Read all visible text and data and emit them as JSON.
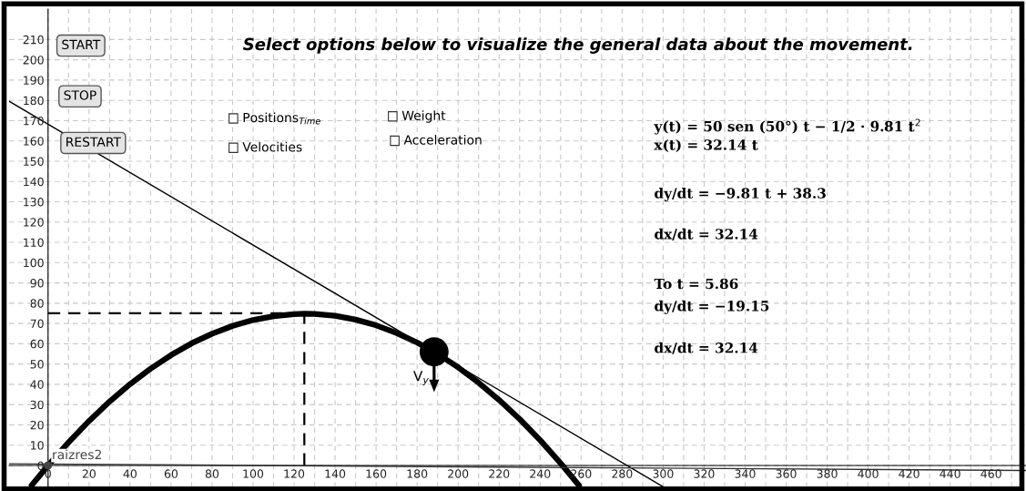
{
  "chart_data": {
    "type": "line",
    "title": "Select options below to visualize the general data about the movement.",
    "xlim": [
      -19,
      477
    ],
    "ylim": [
      -10.8,
      225
    ],
    "xticks": [
      0,
      {
        "value": 10,
        "label": null
      },
      20,
      {
        "value": 30,
        "label": null
      },
      40,
      {
        "value": 50,
        "label": null
      },
      60,
      {
        "value": 70,
        "label": null
      },
      80,
      {
        "value": 90,
        "label": null
      },
      100,
      {
        "value": 110,
        "label": null
      },
      120,
      {
        "value": 130,
        "label": null
      },
      140,
      {
        "value": 150,
        "label": null
      },
      160,
      {
        "value": 170,
        "label": null
      },
      180,
      {
        "value": 190,
        "label": null
      },
      200,
      {
        "value": 210,
        "label": null
      },
      220,
      {
        "value": 230,
        "label": null
      },
      240,
      {
        "value": 250,
        "label": null
      },
      260,
      {
        "value": 270,
        "label": null
      },
      280,
      {
        "value": 290,
        "label": null
      },
      300,
      {
        "value": 310,
        "label": null
      },
      320,
      {
        "value": 330,
        "label": null
      },
      340,
      {
        "value": 350,
        "label": null
      },
      360,
      {
        "value": 370,
        "label": null
      },
      380,
      {
        "value": 390,
        "label": null
      },
      400,
      {
        "value": 410,
        "label": null
      },
      420,
      {
        "value": 430,
        "label": null
      },
      440,
      {
        "value": 450,
        "label": null
      },
      460,
      {
        "value": 470,
        "label": null
      }
    ],
    "yticks": [
      0,
      10,
      20,
      30,
      40,
      50,
      60,
      70,
      80,
      90,
      100,
      110,
      120,
      130,
      140,
      150,
      160,
      170,
      180,
      190,
      200,
      210
    ],
    "grid": true,
    "legend": false,
    "series": [
      {
        "color": "#000000",
        "line_style": "solid",
        "x": [
          -8,
          0,
          10,
          20,
          30,
          40,
          50,
          60,
          70,
          80,
          90,
          100,
          110,
          120,
          125,
          130,
          140,
          150,
          160,
          170,
          180,
          188.3,
          190,
          200,
          210,
          220,
          230,
          240,
          250,
          259
        ],
        "values": [
          -9.8,
          0,
          11.4,
          21.9,
          31.5,
          40.1,
          47.7,
          54.4,
          60.2,
          64.9,
          68.8,
          71.7,
          73.6,
          74.6,
          74.8,
          74.7,
          73.8,
          71.9,
          69.1,
          65.3,
          60.6,
          56.0,
          55.0,
          48.4,
          40.8,
          32.3,
          22.9,
          12.5,
          1.1,
          -9.9
        ]
      },
      {
        "color": "#000000",
        "line_style": "solid",
        "x": [
          -19,
          300
        ],
        "values": [
          179.6,
          -10.5
        ]
      },
      {
        "color": "#000000",
        "line_style": "dashed",
        "x": [
          0,
          125
        ],
        "values": [
          75,
          75
        ]
      },
      {
        "color": "#000000",
        "line_style": "dashed",
        "x": [
          125,
          125
        ],
        "values": [
          0,
          75
        ]
      },
      {
        "color": "#333333",
        "line_style": "solid",
        "x": [
          -19,
          477
        ],
        "values": [
          0.8,
          -2.5
        ]
      },
      {
        "type": "scatter",
        "color": "#000000",
        "marker": "circle",
        "x": [
          188.3
        ],
        "values": [
          56.0
        ]
      },
      {
        "type": "scatter",
        "name": "raizres2",
        "color": "#444444",
        "marker": "circle",
        "x": [
          0
        ],
        "values": [
          0
        ]
      }
    ],
    "annotations": [
      "V$_{y}$",
      "START",
      "STOP",
      "RESTART",
      "Positions$_{Time}$",
      "Velocities",
      "Weight",
      "Acceleration",
      "y(t) = 50 sen (50°) t − 1/2 · 9.81 t$^{2}$",
      "x(t) = 32.14 t",
      "dy/dt = −9.81 t + 38.3",
      "dx/dt = 32.14",
      "To t = 5.86",
      "dy/dt = −19.15",
      "dx/dt = 32.14"
    ]
  }
}
